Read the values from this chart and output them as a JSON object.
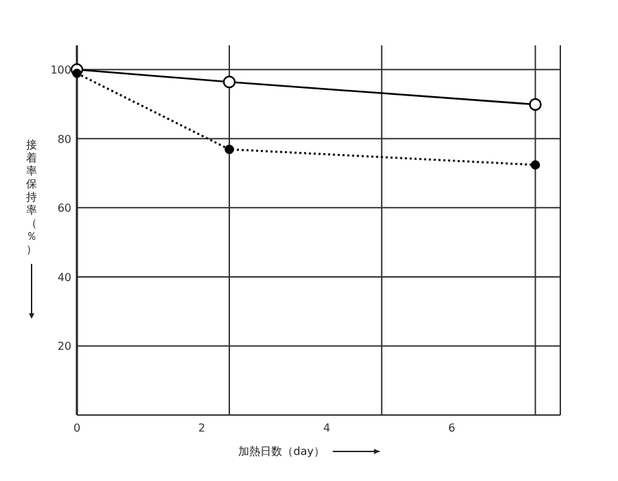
{
  "chart_data": {
    "type": "line",
    "xlabel": "加熱日数（day）",
    "ylabel": "接着率保持率（％）",
    "xlim": [
      0,
      7.74
    ],
    "ylim": [
      0,
      107
    ],
    "xticks": [
      0,
      2,
      4,
      6
    ],
    "yticks": [
      20,
      40,
      60,
      80,
      100
    ],
    "grid": "y",
    "marker": "circle",
    "ref_lines": [
      {
        "axis": "x",
        "value": 2.44
      },
      {
        "axis": "x",
        "value": 4.88
      },
      {
        "axis": "x",
        "value": 7.34
      }
    ],
    "series": [
      {
        "color": "#000000",
        "line_style": "solid",
        "x": [
          0,
          2.44,
          7.34
        ],
        "values": [
          100,
          96.4,
          89.9
        ]
      },
      {
        "color": "#000000",
        "line_style": "dotted",
        "x": [
          0,
          2.44,
          7.34
        ],
        "values": [
          98.9,
          76.9,
          72.4
        ]
      }
    ]
  }
}
